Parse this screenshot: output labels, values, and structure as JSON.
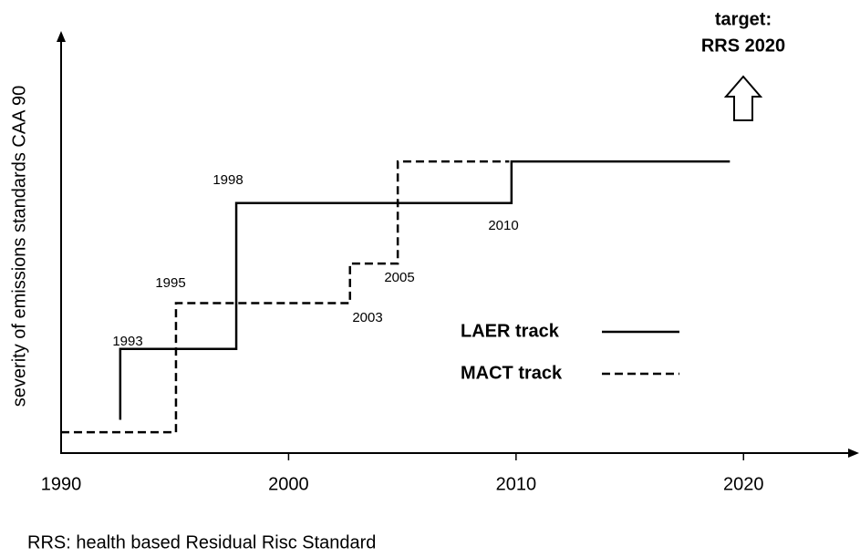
{
  "chart_data": {
    "type": "line",
    "ylabel": "severity of emissions standards CAA 90",
    "xlim": [
      1990,
      2025
    ],
    "xticks": [
      1990,
      2000,
      2010,
      2020
    ],
    "ylim": [
      0,
      100
    ],
    "series": [
      {
        "name": "LAER track",
        "color": "#000000",
        "style": "solid",
        "x": [
          1992.6,
          1992.6,
          1997.7,
          1997.7,
          2009.8,
          2009.8,
          2019.4
        ],
        "values": [
          8,
          25,
          25,
          60,
          60,
          70,
          70
        ]
      },
      {
        "name": "MACT track",
        "color": "#000000",
        "style": "dashed",
        "x": [
          1990,
          1995.05,
          1995.05,
          2002.7,
          2002.7,
          2004.8,
          2004.8,
          2009.7
        ],
        "values": [
          5,
          5,
          36,
          36,
          45.5,
          45.5,
          70,
          70
        ]
      }
    ],
    "annotations": [
      "1993",
      "1998",
      "1995",
      "2003",
      "2005",
      "2010"
    ],
    "target": [
      "target:",
      "RRS 2020"
    ],
    "footnote": "RRS: health based Residual Risc Standard"
  }
}
